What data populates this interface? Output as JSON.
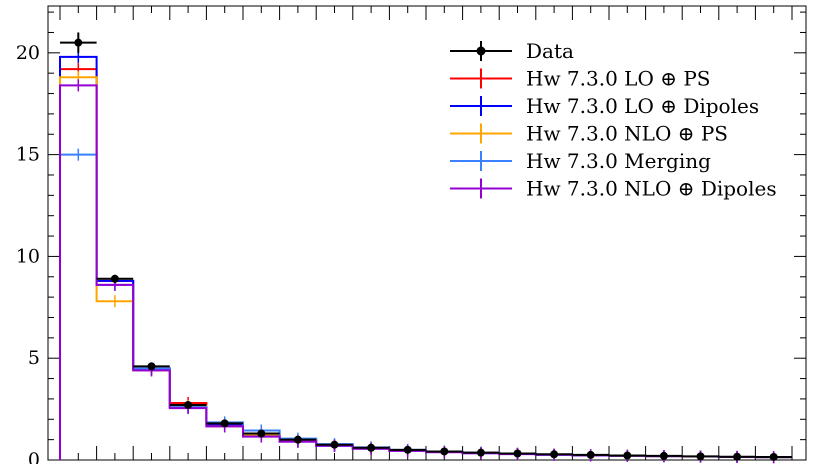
{
  "chart_data": {
    "type": "line",
    "title": "",
    "xlabel": "",
    "ylabel": "",
    "ylim": [
      0,
      22.3
    ],
    "x_edges": [
      0,
      1,
      2,
      3,
      4,
      5,
      6,
      7,
      8,
      9,
      10,
      11,
      12,
      13,
      14,
      15,
      16,
      17,
      18,
      19,
      20
    ],
    "yticks": [
      {
        "value": 0,
        "label": "0"
      },
      {
        "value": 5,
        "label": "5"
      },
      {
        "value": 10,
        "label": "10"
      },
      {
        "value": 15,
        "label": "15"
      },
      {
        "value": 20,
        "label": "20"
      }
    ],
    "data": {
      "name": "Data",
      "color": "#000000",
      "values": [
        20.5,
        8.9,
        4.6,
        2.7,
        1.8,
        1.3,
        1.0,
        0.75,
        0.6,
        0.5,
        0.42,
        0.36,
        0.32,
        0.28,
        0.25,
        0.22,
        0.2,
        0.18,
        0.16,
        0.15
      ],
      "errors": [
        0.5,
        0.15,
        0.1,
        0.08,
        0.06,
        0.05,
        0.04,
        0.1,
        0.1,
        0.1,
        0.1,
        0.1,
        0.1,
        0.1,
        0.1,
        0.1,
        0.1,
        0.1,
        0.1,
        0.1
      ]
    },
    "series": [
      {
        "name": "Hw 7.3.0 LO ⊕ PS",
        "color": "#ff0000",
        "values": [
          19.2,
          8.8,
          4.5,
          2.8,
          1.75,
          1.3,
          0.95,
          0.72,
          0.58,
          0.47,
          0.4,
          0.35,
          0.3,
          0.27,
          0.24,
          0.21,
          0.19,
          0.17,
          0.15,
          0.14
        ]
      },
      {
        "name": "Hw 7.3.0 LO ⊕ Dipoles",
        "color": "#0000ff",
        "values": [
          19.8,
          8.8,
          4.45,
          2.6,
          1.7,
          1.2,
          0.9,
          0.7,
          0.56,
          0.46,
          0.39,
          0.34,
          0.3,
          0.26,
          0.23,
          0.21,
          0.19,
          0.17,
          0.15,
          0.14
        ]
      },
      {
        "name": "Hw 7.3.0 NLO ⊕ PS",
        "color": "#ffa500",
        "values": [
          18.8,
          7.8,
          4.4,
          2.65,
          1.65,
          1.25,
          0.95,
          0.72,
          0.58,
          0.47,
          0.4,
          0.35,
          0.3,
          0.27,
          0.24,
          0.21,
          0.19,
          0.17,
          0.15,
          0.14
        ]
      },
      {
        "name": "Hw 7.3.0 Merging",
        "color": "#3a80ff",
        "values": [
          15.0,
          8.6,
          4.5,
          2.6,
          1.85,
          1.45,
          1.05,
          0.78,
          0.62,
          0.5,
          0.42,
          0.36,
          0.31,
          0.27,
          0.24,
          0.21,
          0.19,
          0.17,
          0.15,
          0.14
        ]
      },
      {
        "name": "Hw 7.3.0 NLO ⊕ Dipoles",
        "color": "#9400d3",
        "values": [
          18.4,
          8.6,
          4.4,
          2.55,
          1.65,
          1.15,
          0.9,
          0.7,
          0.55,
          0.45,
          0.38,
          0.33,
          0.29,
          0.26,
          0.23,
          0.21,
          0.19,
          0.17,
          0.15,
          0.14
        ]
      }
    ],
    "legend_position": "top-right",
    "grid": false
  }
}
